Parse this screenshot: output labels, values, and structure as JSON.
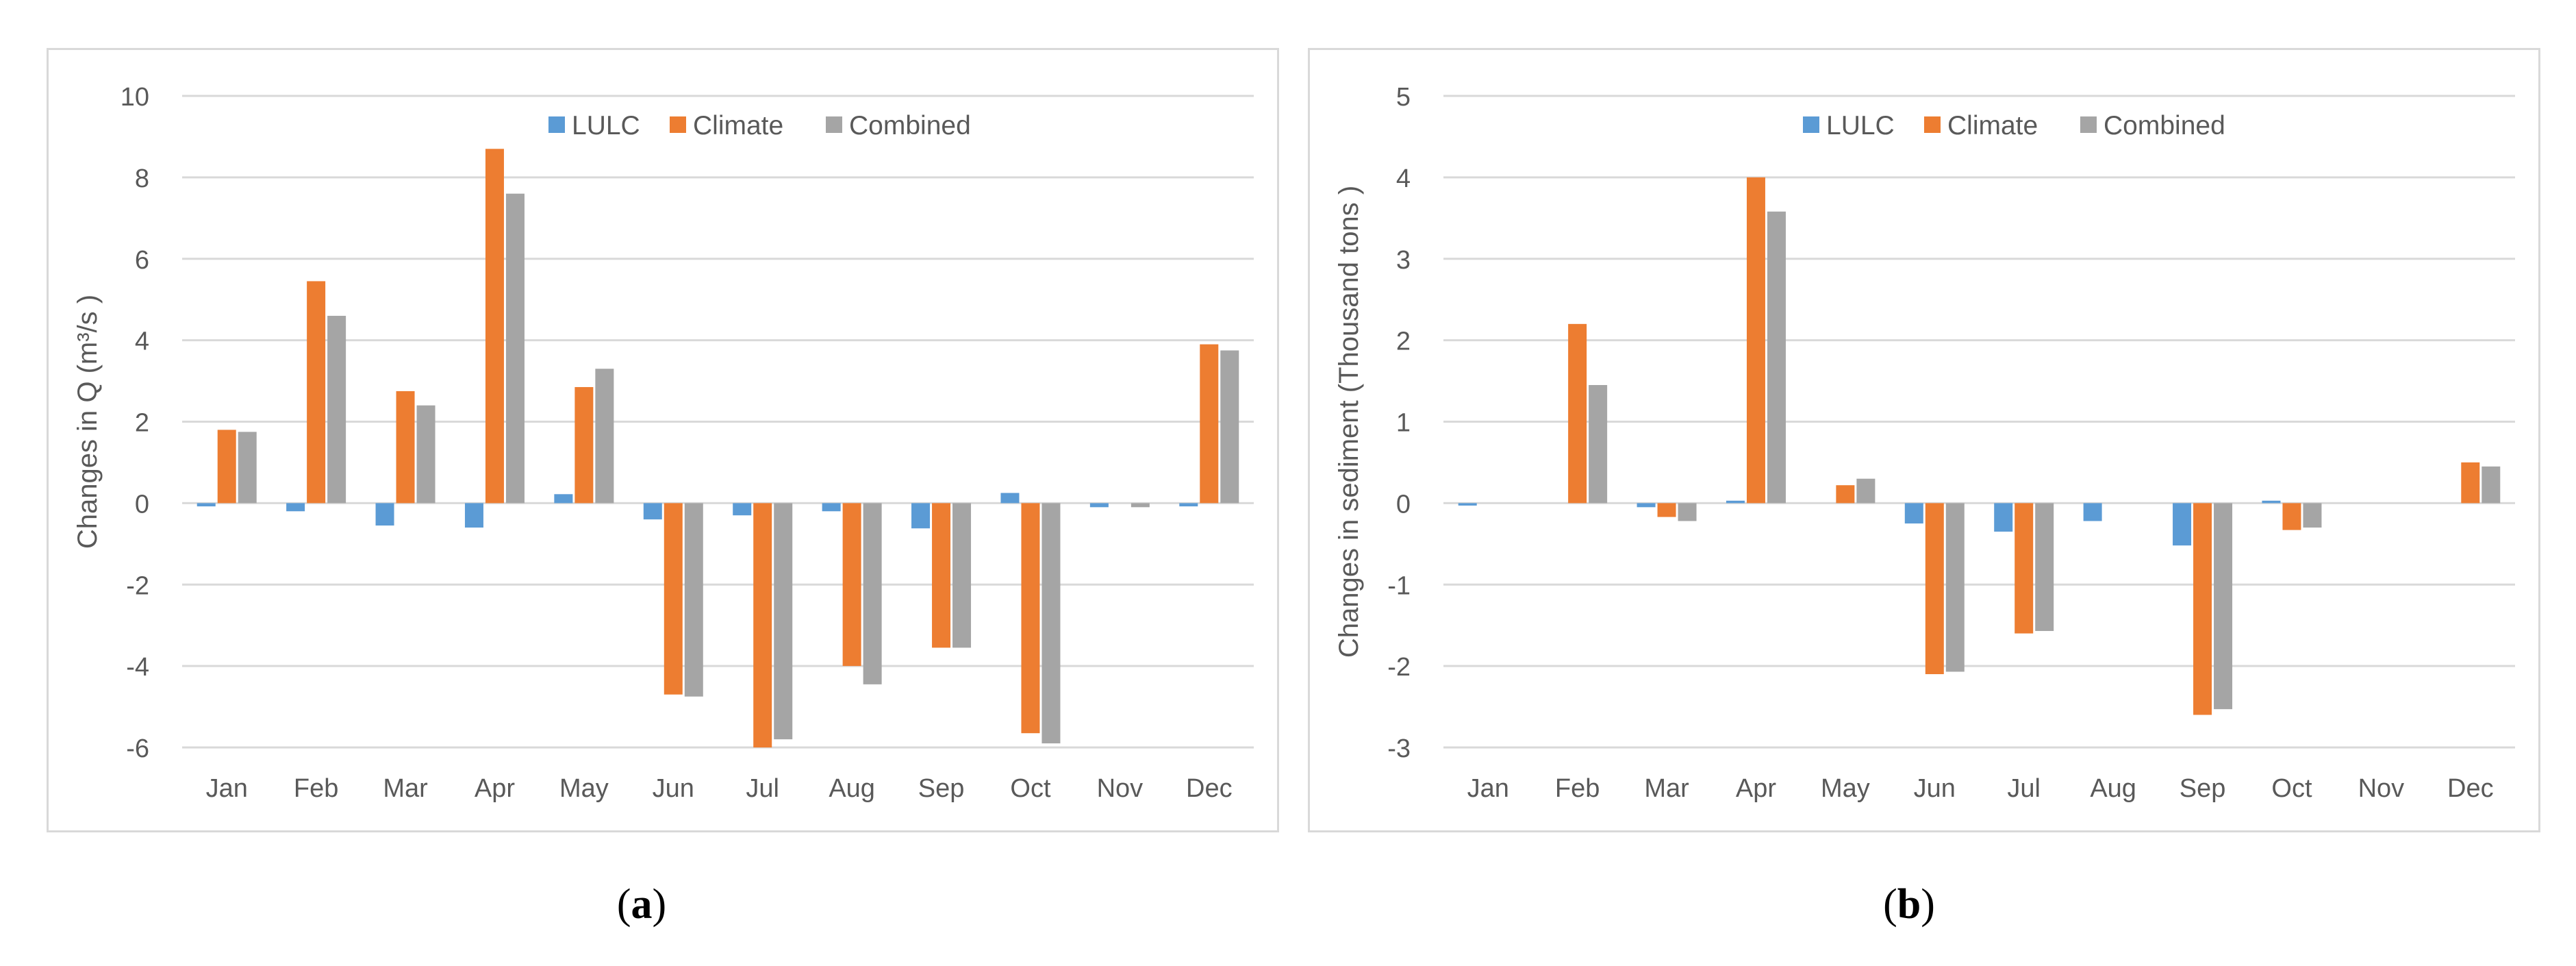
{
  "colors": {
    "lulc": "#5b9bd5",
    "climate": "#ed7d31",
    "combined": "#a5a5a5",
    "grid": "#d9d9d9",
    "text": "#595959"
  },
  "chart_data": [
    {
      "type": "bar",
      "id": "a",
      "caption": "a",
      "categories": [
        "Jan",
        "Feb",
        "Mar",
        "Apr",
        "May",
        "Jun",
        "Jul",
        "Aug",
        "Sep",
        "Oct",
        "Nov",
        "Dec"
      ],
      "ylabel": "Changes in Q (m³/s )",
      "ylim": [
        -6,
        10
      ],
      "yticks": [
        -6,
        -4,
        -2,
        0,
        2,
        4,
        6,
        8,
        10
      ],
      "legend_position": "top-center",
      "series": [
        {
          "name": "LULC",
          "color": "#5b9bd5",
          "values": [
            -0.08,
            -0.2,
            -0.55,
            -0.6,
            0.22,
            -0.4,
            -0.3,
            -0.2,
            -0.62,
            0.25,
            -0.1,
            -0.08
          ]
        },
        {
          "name": "Climate",
          "color": "#ed7d31",
          "values": [
            1.8,
            5.45,
            2.75,
            8.7,
            2.85,
            -4.7,
            -6.0,
            -4.0,
            -3.55,
            -5.65,
            0.0,
            3.9
          ]
        },
        {
          "name": "Combined",
          "color": "#a5a5a5",
          "values": [
            1.75,
            4.6,
            2.4,
            7.6,
            3.3,
            -4.75,
            -5.8,
            -4.45,
            -3.55,
            -5.9,
            -0.1,
            3.75
          ]
        }
      ]
    },
    {
      "type": "bar",
      "id": "b",
      "caption": "b",
      "categories": [
        "Jan",
        "Feb",
        "Mar",
        "Apr",
        "May",
        "Jun",
        "Jul",
        "Aug",
        "Sep",
        "Oct",
        "Nov",
        "Dec"
      ],
      "ylabel": "Changes in sediment (Thousand tons )",
      "ylim": [
        -3,
        5
      ],
      "yticks": [
        -3,
        -2,
        -1,
        0,
        1,
        2,
        3,
        4,
        5
      ],
      "legend_position": "top-center",
      "series": [
        {
          "name": "LULC",
          "color": "#5b9bd5",
          "values": [
            -0.03,
            0.0,
            -0.05,
            0.03,
            0.0,
            -0.25,
            -0.35,
            -0.22,
            -0.52,
            0.03,
            0.0,
            0.0
          ]
        },
        {
          "name": "Climate",
          "color": "#ed7d31",
          "values": [
            0.0,
            2.2,
            -0.17,
            4.0,
            0.22,
            -2.1,
            -1.6,
            0.0,
            -2.6,
            -0.33,
            0.0,
            0.5
          ]
        },
        {
          "name": "Combined",
          "color": "#a5a5a5",
          "values": [
            0.0,
            1.45,
            -0.22,
            3.58,
            0.3,
            -2.07,
            -1.57,
            0.0,
            -2.53,
            -0.3,
            0.0,
            0.45
          ]
        }
      ]
    }
  ]
}
